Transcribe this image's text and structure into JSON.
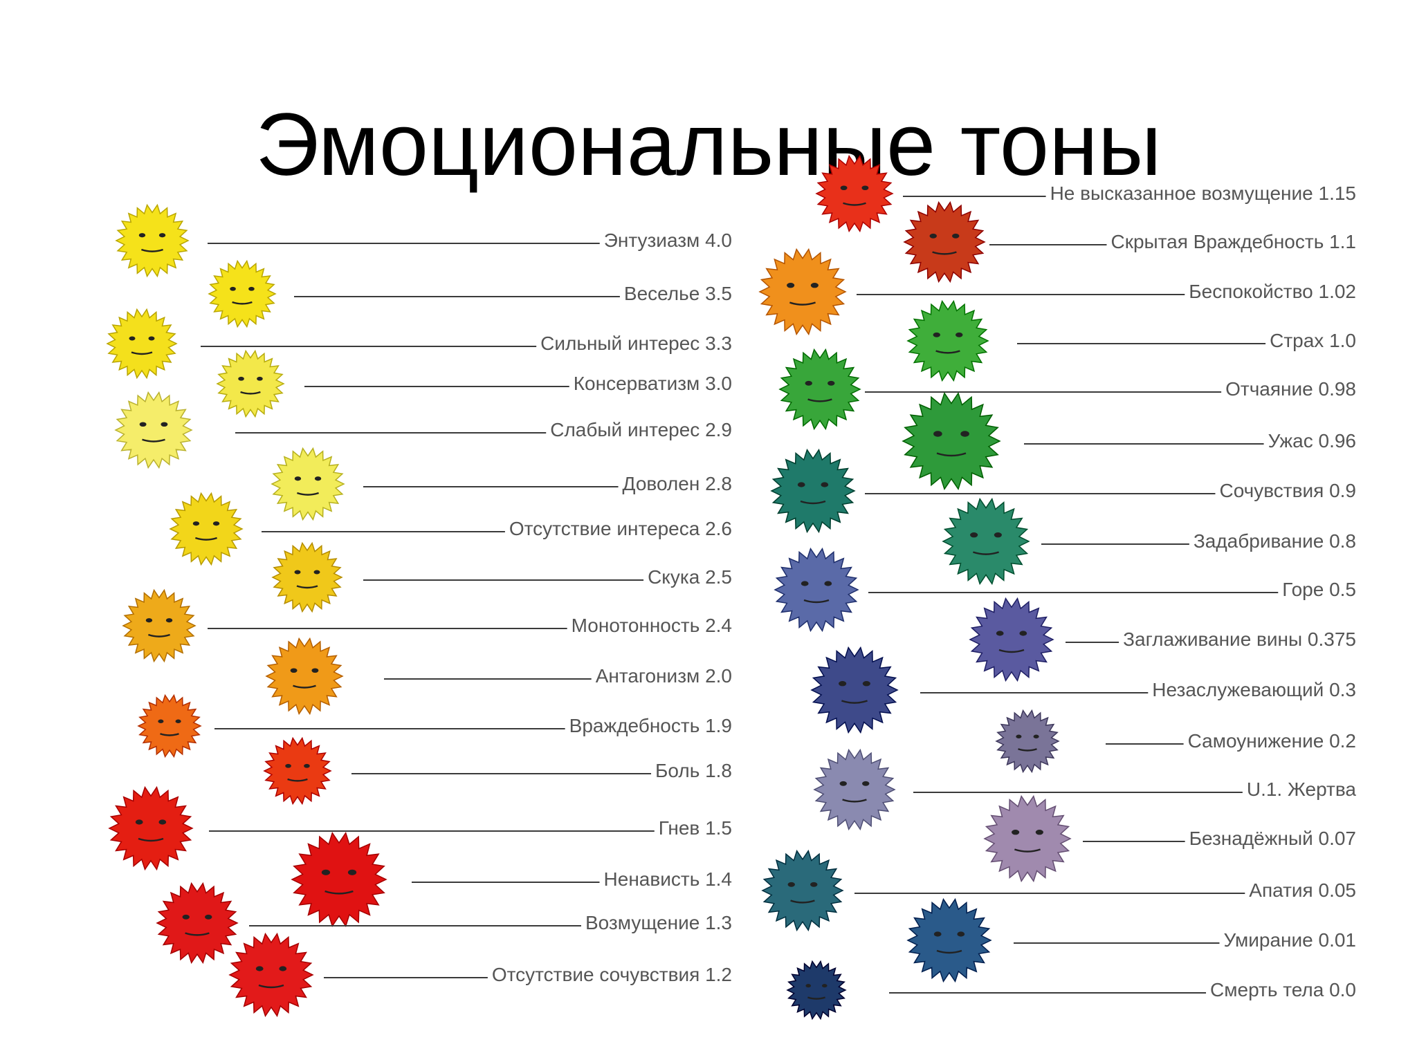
{
  "title": "Эмоциональные тоны",
  "left_column": [
    {
      "label": "Энтузиазм 4.0",
      "color": "#f5e21a"
    },
    {
      "label": "Веселье 3.5",
      "color": "#f5e21a"
    },
    {
      "label": "Сильный интерес 3.3",
      "color": "#f4e01c"
    },
    {
      "label": "Консерватизм 3.0",
      "color": "#f3e84a"
    },
    {
      "label": "Слабый интерес 2.9",
      "color": "#f5ed6a"
    },
    {
      "label": "Доволен 2.8",
      "color": "#f2ec5a"
    },
    {
      "label": "Отсутствие интереса 2.6",
      "color": "#f2d61a"
    },
    {
      "label": "Скука 2.5",
      "color": "#f0c81a"
    },
    {
      "label": "Монотонность 2.4",
      "color": "#eeaa1a"
    },
    {
      "label": "Антагонизм 2.0",
      "color": "#f09a18"
    },
    {
      "label": "Враждебность 1.9",
      "color": "#ef6a15"
    },
    {
      "label": "Боль 1.8",
      "color": "#ea3a12"
    },
    {
      "label": "Гнев 1.5",
      "color": "#e41e12"
    },
    {
      "label": "Ненависть 1.4",
      "color": "#e01212"
    },
    {
      "label": "Возмущение 1.3",
      "color": "#e01818"
    },
    {
      "label": "Отсутствие сочувствия 1.2",
      "color": "#e21a1a"
    }
  ],
  "right_column": [
    {
      "label": "Не высказанное возмущение 1.15",
      "color": "#e8301a"
    },
    {
      "label": "Скрытая Враждебность 1.1",
      "color": "#c83a1a"
    },
    {
      "label": "Беспокойство 1.02",
      "color": "#f0901c"
    },
    {
      "label": "Страх 1.0",
      "color": "#3fae3a"
    },
    {
      "label": "Отчаяние 0.98",
      "color": "#38a63a"
    },
    {
      "label": "Ужас 0.96",
      "color": "#2e9a3a"
    },
    {
      "label": "Сочувствия 0.9",
      "color": "#1f7a6a"
    },
    {
      "label": "Задабривание 0.8",
      "color": "#2a8a6a"
    },
    {
      "label": "Горе 0.5",
      "color": "#5a6aa8"
    },
    {
      "label": "Заглаживание вины 0.375",
      "color": "#5a5aa0"
    },
    {
      "label": "Незаслужевающий 0.3",
      "color": "#3e4a8a"
    },
    {
      "label": "Самоунижение 0.2",
      "color": "#7a7498"
    },
    {
      "label": "U.1. Жертва",
      "color": "#8a8ab0"
    },
    {
      "label": "Безнадёжный 0.07",
      "color": "#a08aae"
    },
    {
      "label": "Апатия 0.05",
      "color": "#2a6a7a"
    },
    {
      "label": "Умирание 0.01",
      "color": "#2a5a8a"
    },
    {
      "label": "Смерть тела 0.0",
      "color": "#1e3a6a"
    }
  ]
}
